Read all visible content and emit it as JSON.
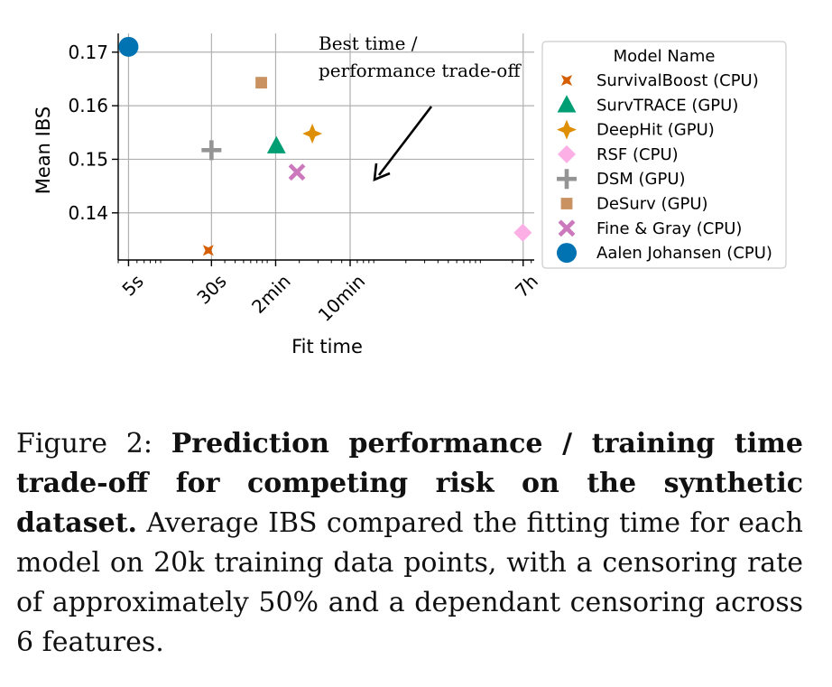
{
  "chart_data": {
    "type": "scatter",
    "title": "",
    "xlabel": "Fit time",
    "ylabel": "Mean IBS",
    "x_scale": "log",
    "x_unit": "seconds",
    "xlim": [
      4,
      32000
    ],
    "ylim": [
      0.1312,
      0.1735
    ],
    "x_ticks": [
      {
        "value": 5,
        "label": "5s"
      },
      {
        "value": 30,
        "label": "30s"
      },
      {
        "value": 120,
        "label": "2min"
      },
      {
        "value": 600,
        "label": "10min"
      },
      {
        "value": 25200,
        "label": "7h"
      }
    ],
    "y_ticks": [
      {
        "value": 0.14,
        "label": "0.14"
      },
      {
        "value": 0.15,
        "label": "0.15"
      },
      {
        "value": 0.16,
        "label": "0.16"
      },
      {
        "value": 0.17,
        "label": "0.17"
      }
    ],
    "grid": true,
    "legend": {
      "title": "Model Name",
      "placement": "right-outside"
    },
    "series": [
      {
        "name": "SurvivalBoost (CPU)",
        "marker": "star4",
        "color": "#d55e00",
        "points": [
          {
            "x": 28,
            "y": 0.133
          }
        ]
      },
      {
        "name": "SurvTRACE (GPU)",
        "marker": "triangle",
        "color": "#029e73",
        "points": [
          {
            "x": 122,
            "y": 0.1525
          }
        ]
      },
      {
        "name": "DeepHit (GPU)",
        "marker": "star4fat",
        "color": "#de8f05",
        "points": [
          {
            "x": 265,
            "y": 0.1548
          }
        ]
      },
      {
        "name": "RSF (CPU)",
        "marker": "diamond",
        "color": "#fbafe4",
        "points": [
          {
            "x": 25000,
            "y": 0.1363
          }
        ]
      },
      {
        "name": "DSM (GPU)",
        "marker": "plus",
        "color": "#949494",
        "points": [
          {
            "x": 30,
            "y": 0.1517
          }
        ]
      },
      {
        "name": "DeSurv (GPU)",
        "marker": "square",
        "color": "#ca9161",
        "points": [
          {
            "x": 88,
            "y": 0.1643
          }
        ]
      },
      {
        "name": "Fine & Gray (CPU)",
        "marker": "x",
        "color": "#cc78bc",
        "points": [
          {
            "x": 190,
            "y": 0.1476
          }
        ]
      },
      {
        "name": "Aalen Johansen (CPU)",
        "marker": "circle",
        "color": "#0173b2",
        "points": [
          {
            "x": 5,
            "y": 0.171
          }
        ]
      }
    ],
    "annotation": {
      "lines": [
        "Best time /",
        "performance trade-off"
      ],
      "arrow": true
    }
  },
  "caption": {
    "prefix": "Figure 2: ",
    "bold": "Prediction performance / training time trade-off for competing risk on the synthetic dataset.",
    "rest": " Average IBS compared the fitting time for each model on 20k training data points, with a censoring rate of approximately 50% and a dependant censoring across 6 features."
  }
}
